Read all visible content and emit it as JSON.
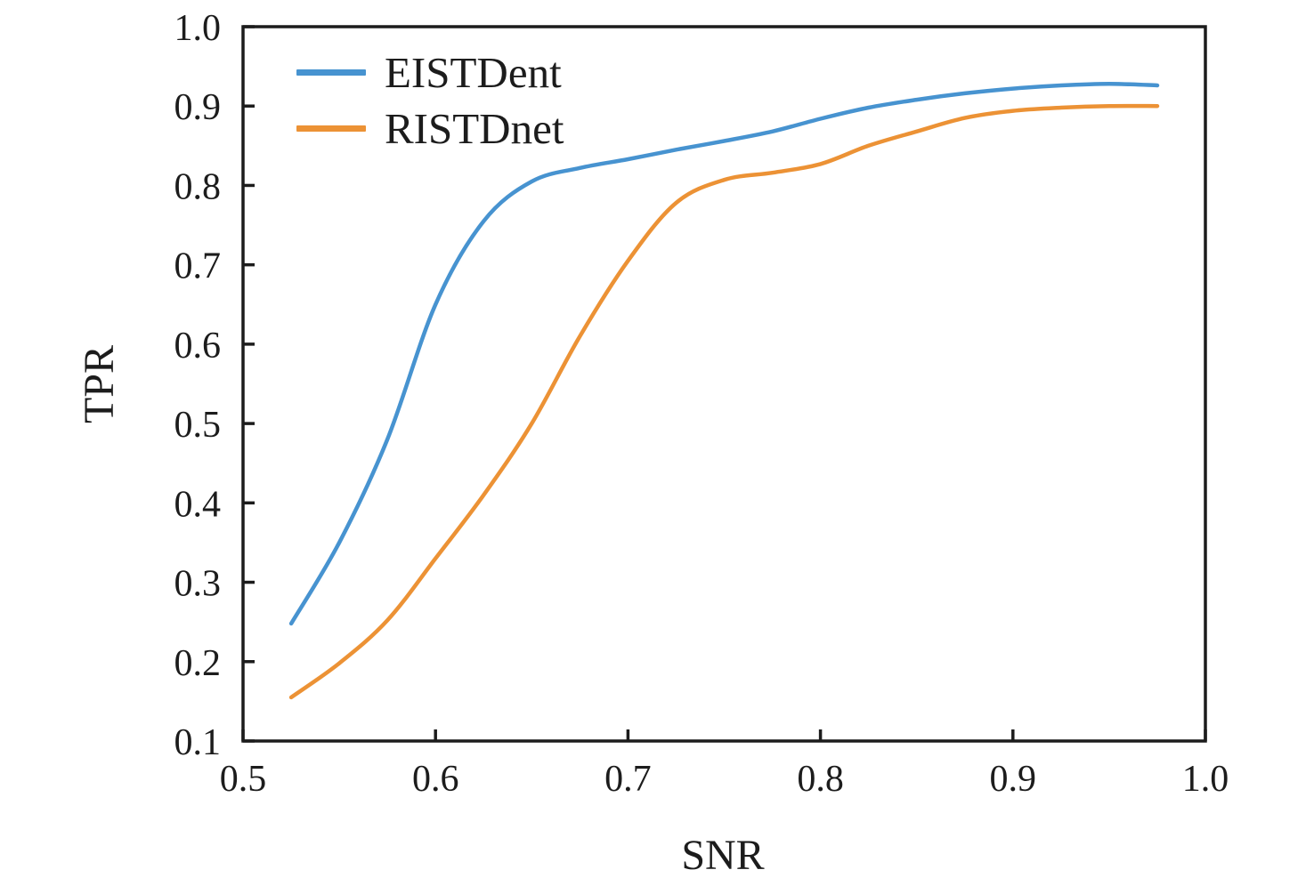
{
  "chart_data": {
    "type": "line",
    "title": "",
    "xlabel": "SNR",
    "ylabel": "TPR",
    "xlim": [
      0.5,
      1.0
    ],
    "ylim": [
      0.1,
      1.0
    ],
    "xticks": [
      "0.5",
      "0.6",
      "0.7",
      "0.8",
      "0.9",
      "1.0"
    ],
    "yticks": [
      "0.1",
      "0.2",
      "0.3",
      "0.4",
      "0.5",
      "0.6",
      "0.7",
      "0.8",
      "0.9",
      "1.0"
    ],
    "grid": false,
    "legend_position": "upper-left",
    "axis_color": "#1c1c1c",
    "x": [
      0.525,
      0.55,
      0.575,
      0.6,
      0.625,
      0.65,
      0.675,
      0.7,
      0.725,
      0.75,
      0.775,
      0.8,
      0.825,
      0.85,
      0.875,
      0.9,
      0.925,
      0.95,
      0.975
    ],
    "series": [
      {
        "name": "EISTDent",
        "color": "#4793d0",
        "values": [
          0.248,
          0.35,
          0.48,
          0.65,
          0.755,
          0.805,
          0.822,
          0.833,
          0.845,
          0.856,
          0.868,
          0.884,
          0.898,
          0.908,
          0.916,
          0.922,
          0.926,
          0.928,
          0.926
        ]
      },
      {
        "name": "RISTDnet",
        "color": "#ec9235",
        "values": [
          0.155,
          0.198,
          0.252,
          0.33,
          0.41,
          0.5,
          0.61,
          0.705,
          0.778,
          0.807,
          0.816,
          0.827,
          0.85,
          0.868,
          0.885,
          0.894,
          0.898,
          0.9,
          0.9
        ]
      }
    ]
  }
}
